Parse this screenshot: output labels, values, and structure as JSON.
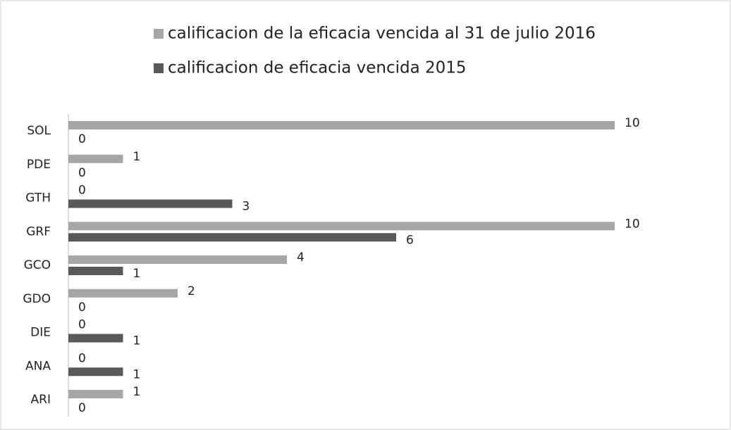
{
  "chart_data": {
    "type": "hbar",
    "categories": [
      "SOL",
      "PDE",
      "GTH",
      "GRF",
      "GCO",
      "GDO",
      "DIE",
      "ANA",
      "ARI"
    ],
    "series": [
      {
        "name": "calificacion de la eficacia vencida al 31 de julio 2016",
        "color": "#a6a6a6",
        "values": [
          10,
          1,
          0,
          10,
          4,
          2,
          0,
          0,
          1
        ]
      },
      {
        "name": "calificacion de eficacia vencida 2015",
        "color": "#595959",
        "values": [
          0,
          0,
          3,
          6,
          1,
          0,
          1,
          1,
          0
        ]
      }
    ],
    "xlim": [
      0,
      10
    ],
    "legend": "top"
  }
}
